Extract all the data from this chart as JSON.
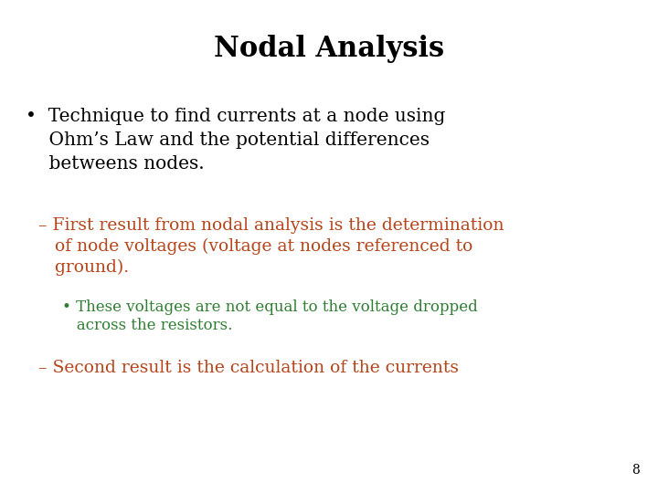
{
  "title": "Nodal Analysis",
  "title_fontsize": 22,
  "title_color": "#000000",
  "background_color": "#ffffff",
  "page_number": "8",
  "bullet1_line1": "•  Technique to find currents at a node using",
  "bullet1_line2": "    Ohm’s Law and the potential differences",
  "bullet1_line3": "    betweens nodes.",
  "bullet1_color": "#000000",
  "bullet1_fontsize": 14.5,
  "sub1_line1": "– First result from nodal analysis is the determination",
  "sub1_line2": "   of node voltages (voltage at nodes referenced to",
  "sub1_line3": "   ground).",
  "sub1_color": "#b5451b",
  "sub1_fontsize": 13.5,
  "sub2_line1": "• These voltages are not equal to the voltage dropped",
  "sub2_line2": "   across the resistors.",
  "sub2_color": "#2e7d32",
  "sub2_fontsize": 12.0,
  "sub3_line1": "– Second result is the calculation of the currents",
  "sub3_color": "#b5451b",
  "sub3_fontsize": 13.5,
  "page_num_fontsize": 10
}
